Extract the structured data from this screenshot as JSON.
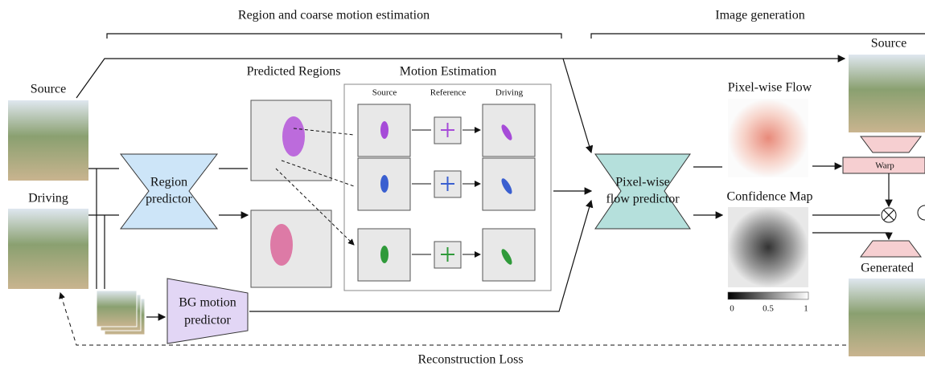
{
  "sections": {
    "left": "Region and coarse motion estimation",
    "right": "Image generation"
  },
  "inputs": {
    "source": "Source",
    "driving": "Driving"
  },
  "region_predictor": {
    "label": [
      "Region",
      "predictor"
    ]
  },
  "bg_predictor": {
    "label": [
      "BG motion",
      "predictor"
    ]
  },
  "predicted_regions": {
    "title": "Predicted Regions"
  },
  "motion_estimation": {
    "title": "Motion Estimation",
    "columns": [
      "Source",
      "Reference",
      "Driving"
    ]
  },
  "flow_predictor": {
    "label": [
      "Pixel-wise",
      "flow predictor"
    ]
  },
  "pixel_flow": {
    "title": "Pixel-wise Flow"
  },
  "confidence_map": {
    "title": "Confidence Map",
    "ticks": [
      0,
      0.5,
      1
    ]
  },
  "output": {
    "source": "Source",
    "warp": "Warp",
    "generated": "Generated"
  },
  "loss": "Reconstruction Loss"
}
